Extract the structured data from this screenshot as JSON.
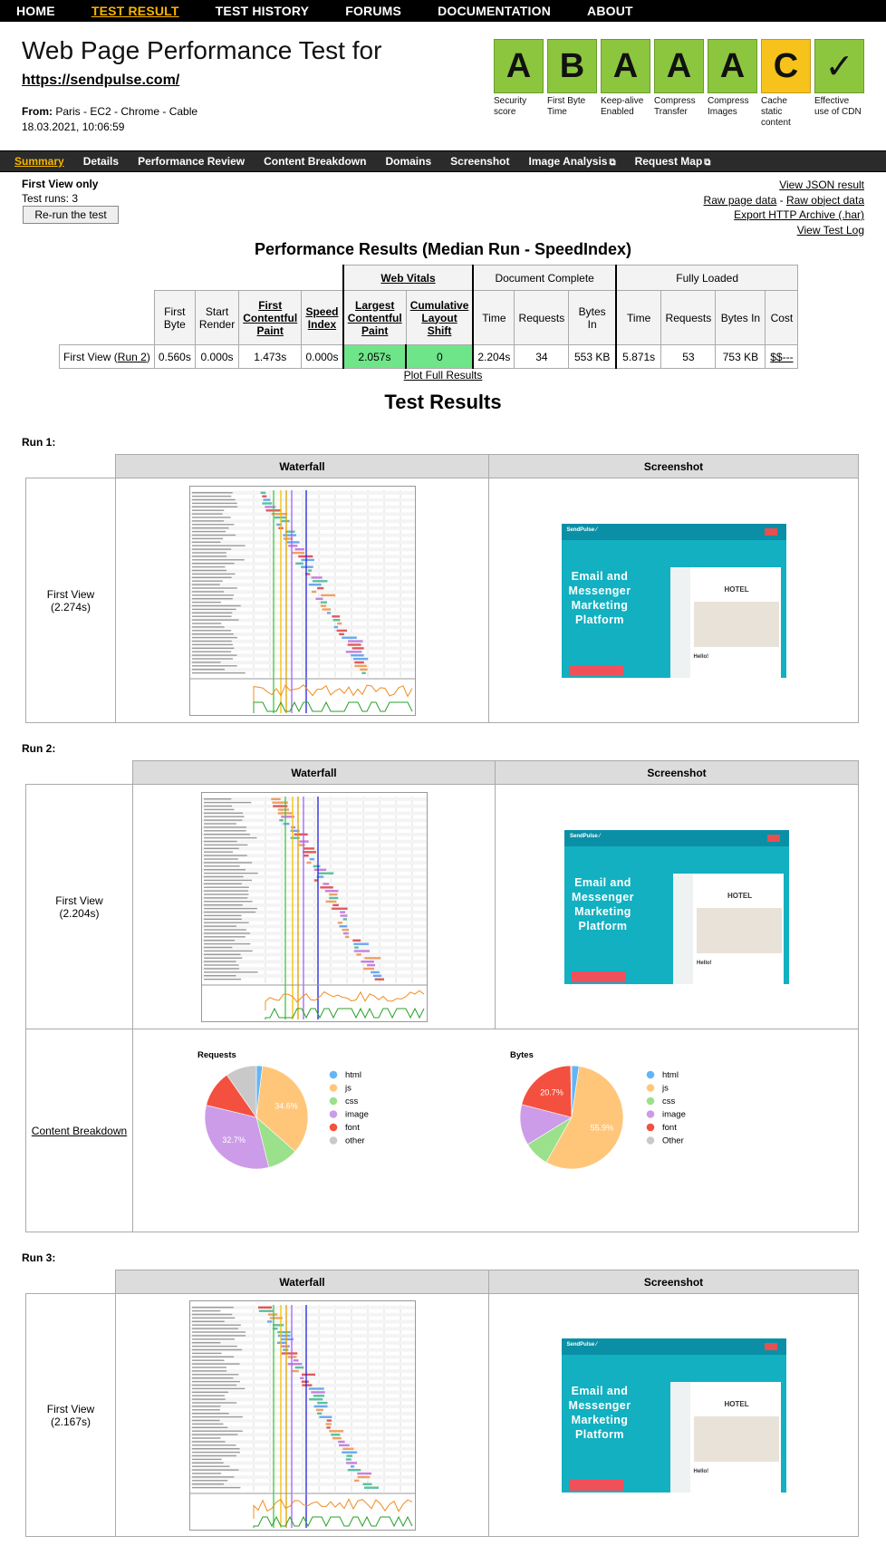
{
  "topnav": {
    "items": [
      "HOME",
      "TEST RESULT",
      "TEST HISTORY",
      "FORUMS",
      "DOCUMENTATION",
      "ABOUT"
    ],
    "active_index": 1
  },
  "header": {
    "title": "Web Page Performance Test for",
    "url": "https://sendpulse.com/",
    "from_label": "From:",
    "from_value": "Paris - EC2 - Chrome - Cable",
    "date": "18.03.2021, 10:06:59"
  },
  "grades": [
    {
      "letter": "A",
      "label": "Security score",
      "color": "#8cc63f"
    },
    {
      "letter": "B",
      "label": "First Byte Time",
      "color": "#8cc63f"
    },
    {
      "letter": "A",
      "label": "Keep-alive Enabled",
      "color": "#8cc63f"
    },
    {
      "letter": "A",
      "label": "Compress Transfer",
      "color": "#8cc63f"
    },
    {
      "letter": "A",
      "label": "Compress Images",
      "color": "#8cc63f"
    },
    {
      "letter": "C",
      "label": "Cache static content",
      "color": "#f7c21b"
    },
    {
      "letter": "✓",
      "label": "Effective use of CDN",
      "color": "#8cc63f"
    }
  ],
  "subnav": {
    "items": [
      "Summary",
      "Details",
      "Performance Review",
      "Content Breakdown",
      "Domains",
      "Screenshot",
      "Image Analysis",
      "Request Map"
    ],
    "external": [
      false,
      false,
      false,
      false,
      false,
      false,
      true,
      true
    ],
    "active_index": 0
  },
  "info": {
    "first_view_only": "First View only",
    "test_runs": "Test runs: 3",
    "rerun_button": "Re-run the test",
    "links": [
      "View JSON result",
      "Raw page data",
      "Raw object data",
      "Export HTTP Archive (.har)",
      "View Test Log"
    ],
    "raw_separator": " - "
  },
  "perf": {
    "heading": "Performance Results (Median Run - SpeedIndex)",
    "groups": {
      "web_vitals": "Web Vitals",
      "doc_complete": "Document Complete",
      "fully_loaded": "Fully Loaded"
    },
    "columns": [
      "First Byte",
      "Start Render",
      "First Contentful Paint",
      "Speed Index",
      "Largest Contentful Paint",
      "Cumulative Layout Shift",
      "Time",
      "Requests",
      "Bytes In",
      "Time",
      "Requests",
      "Bytes In",
      "Cost"
    ],
    "row_label": "First View (",
    "row_link": "Run 2",
    "row_label_end": ")",
    "values": [
      "0.560s",
      "0.000s",
      "1.473s",
      "0.000s",
      "2.057s",
      "0",
      "2.204s",
      "34",
      "553 KB",
      "5.871s",
      "53",
      "753 KB",
      "$$---"
    ],
    "plot_link": "Plot Full Results"
  },
  "test_results_heading": "Test Results",
  "runs": [
    {
      "label": "Run 1:",
      "waterfall_header": "Waterfall",
      "screenshot_header": "Screenshot",
      "view": "First View",
      "time": "(2.274s)"
    },
    {
      "label": "Run 2:",
      "waterfall_header": "Waterfall",
      "screenshot_header": "Screenshot",
      "view": "First View",
      "time": "(2.204s)",
      "content_breakdown_link": "Content Breakdown"
    },
    {
      "label": "Run 3:",
      "waterfall_header": "Waterfall",
      "screenshot_header": "Screenshot",
      "view": "First View",
      "time": "(2.167s)"
    }
  ],
  "screenshot_text": {
    "brand": "SendPulse ⁄",
    "headline": [
      "Email and",
      "Messenger",
      "Marketing",
      "Platform"
    ],
    "hotel": "HOTEL",
    "hello": "Hello!"
  },
  "chart_data": [
    {
      "type": "pie",
      "title": "Requests",
      "categories": [
        "html",
        "js",
        "css",
        "image",
        "font",
        "other"
      ],
      "values": [
        1.9,
        34.6,
        9.6,
        32.7,
        11.5,
        9.7
      ],
      "colors": [
        "#64b5f6",
        "#ffc67a",
        "#9be08a",
        "#cc9ce8",
        "#f4503f",
        "#c9c9c9"
      ],
      "data_labels": [
        "",
        "34.6%",
        "",
        "32.7%",
        "",
        ""
      ]
    },
    {
      "type": "pie",
      "title": "Bytes",
      "categories": [
        "html",
        "js",
        "css",
        "image",
        "font",
        "Other"
      ],
      "values": [
        2.3,
        55.9,
        8.0,
        12.8,
        20.7,
        0.3
      ],
      "colors": [
        "#64b5f6",
        "#ffc67a",
        "#9be08a",
        "#cc9ce8",
        "#f4503f",
        "#c9c9c9"
      ],
      "data_labels": [
        "",
        "55.9%",
        "",
        "",
        "20.7%",
        ""
      ]
    }
  ]
}
